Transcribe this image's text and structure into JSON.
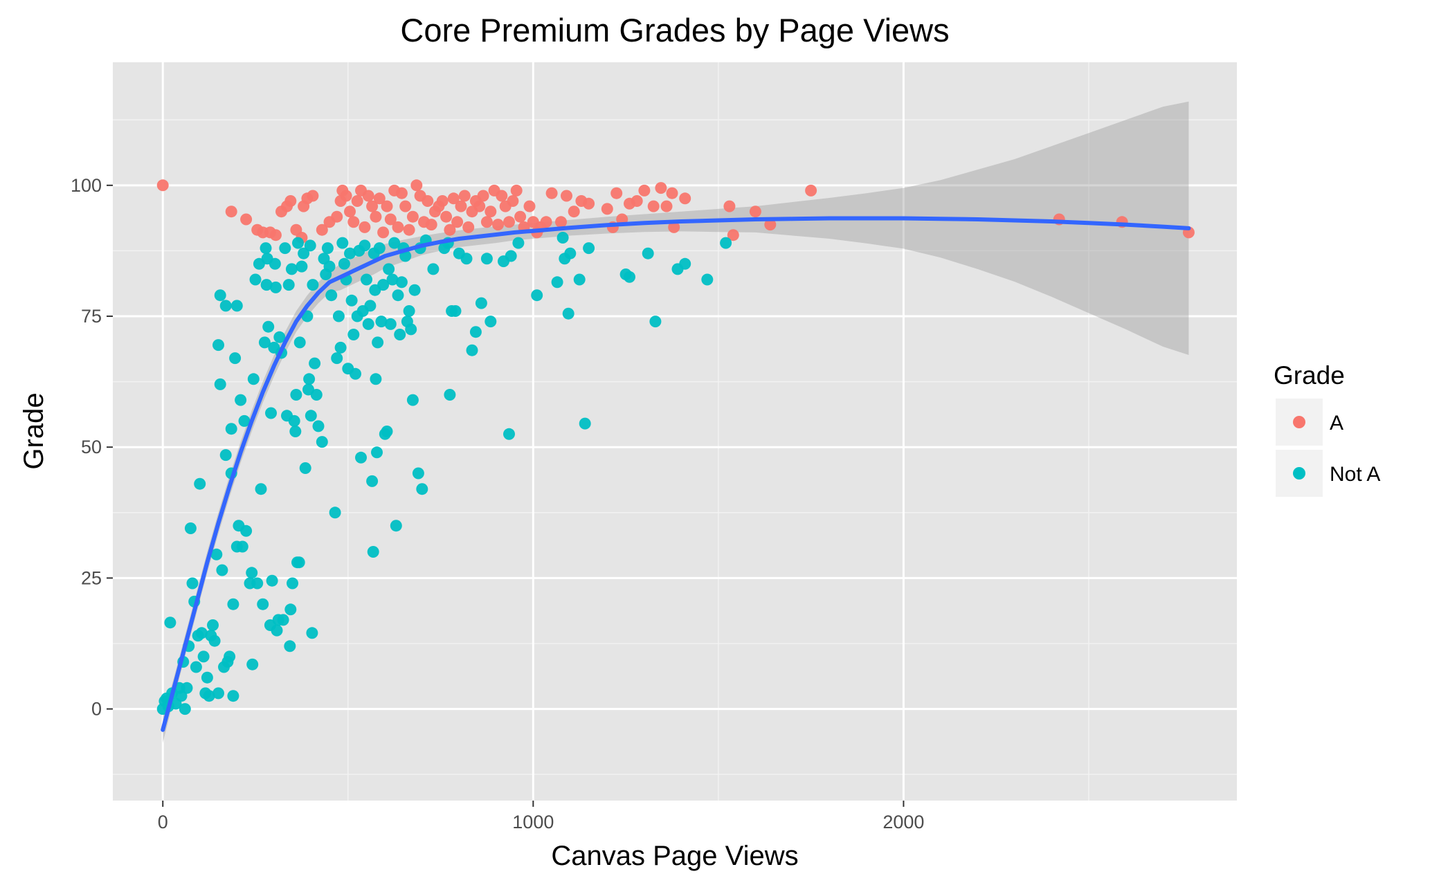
{
  "chart_data": {
    "type": "scatter",
    "title": "Core Premium Grades by Page Views",
    "xlabel": "Canvas Page Views",
    "ylabel": "Grade",
    "xlim": [
      -135,
      2900
    ],
    "ylim": [
      -17.5,
      123.5
    ],
    "x_ticks": [
      0,
      1000,
      2000
    ],
    "x_tick_labels": [
      "0",
      "1000",
      "2000"
    ],
    "x_minor_ticks": [
      500,
      1500,
      2500
    ],
    "y_ticks": [
      0,
      25,
      50,
      75,
      100
    ],
    "y_tick_labels": [
      "0",
      "25",
      "50",
      "75",
      "100"
    ],
    "y_minor_ticks": [
      -12.5,
      12.5,
      37.5,
      62.5,
      87.5,
      112.5
    ],
    "grid": true,
    "legend": {
      "title": "Grade",
      "position": "right"
    },
    "series": [
      {
        "name": "A",
        "color": "#F8766D",
        "points": [
          [
            0,
            100
          ],
          [
            185,
            95
          ],
          [
            225,
            93.5
          ],
          [
            255,
            91.5
          ],
          [
            270,
            91
          ],
          [
            290,
            91
          ],
          [
            305,
            90.5
          ],
          [
            320,
            95
          ],
          [
            335,
            96
          ],
          [
            345,
            97
          ],
          [
            360,
            91.5
          ],
          [
            375,
            90
          ],
          [
            380,
            96
          ],
          [
            390,
            97.5
          ],
          [
            405,
            98
          ],
          [
            430,
            91.5
          ],
          [
            450,
            93
          ],
          [
            470,
            94
          ],
          [
            480,
            97
          ],
          [
            485,
            99
          ],
          [
            495,
            98
          ],
          [
            505,
            95
          ],
          [
            515,
            93
          ],
          [
            525,
            97
          ],
          [
            535,
            99
          ],
          [
            545,
            92
          ],
          [
            555,
            98
          ],
          [
            565,
            96
          ],
          [
            575,
            94
          ],
          [
            585,
            97.5
          ],
          [
            595,
            91
          ],
          [
            605,
            96
          ],
          [
            615,
            93.5
          ],
          [
            625,
            99
          ],
          [
            635,
            92
          ],
          [
            645,
            98.5
          ],
          [
            655,
            96
          ],
          [
            665,
            91.5
          ],
          [
            675,
            94
          ],
          [
            685,
            100
          ],
          [
            695,
            98
          ],
          [
            705,
            93
          ],
          [
            715,
            97
          ],
          [
            725,
            92.5
          ],
          [
            735,
            95
          ],
          [
            745,
            96
          ],
          [
            755,
            97
          ],
          [
            765,
            94
          ],
          [
            775,
            91.5
          ],
          [
            785,
            97.5
          ],
          [
            795,
            93
          ],
          [
            805,
            96
          ],
          [
            815,
            98
          ],
          [
            825,
            92
          ],
          [
            835,
            95
          ],
          [
            845,
            97
          ],
          [
            855,
            96
          ],
          [
            865,
            98
          ],
          [
            875,
            93
          ],
          [
            885,
            95
          ],
          [
            895,
            99
          ],
          [
            905,
            92.5
          ],
          [
            915,
            98
          ],
          [
            925,
            96
          ],
          [
            935,
            93
          ],
          [
            945,
            97
          ],
          [
            955,
            99
          ],
          [
            965,
            94
          ],
          [
            975,
            92
          ],
          [
            990,
            96
          ],
          [
            1000,
            93
          ],
          [
            1010,
            91
          ],
          [
            1020,
            92
          ],
          [
            1035,
            93
          ],
          [
            1050,
            98.5
          ],
          [
            1075,
            93
          ],
          [
            1090,
            98
          ],
          [
            1110,
            95
          ],
          [
            1130,
            97
          ],
          [
            1150,
            96.5
          ],
          [
            1200,
            95.5
          ],
          [
            1215,
            92
          ],
          [
            1225,
            98.5
          ],
          [
            1240,
            93.5
          ],
          [
            1260,
            96.5
          ],
          [
            1280,
            97
          ],
          [
            1300,
            99
          ],
          [
            1325,
            96
          ],
          [
            1345,
            99.5
          ],
          [
            1360,
            96
          ],
          [
            1375,
            98.5
          ],
          [
            1380,
            92
          ],
          [
            1410,
            97.5
          ],
          [
            1530,
            96
          ],
          [
            1540,
            90.5
          ],
          [
            1600,
            95
          ],
          [
            1640,
            92.5
          ],
          [
            1750,
            99
          ],
          [
            2420,
            93.5
          ],
          [
            2590,
            93
          ],
          [
            2770,
            91
          ]
        ]
      },
      {
        "name": "Not A",
        "color": "#00BFC4",
        "points": [
          [
            0,
            0
          ],
          [
            5,
            1.5
          ],
          [
            10,
            2
          ],
          [
            15,
            0.5
          ],
          [
            20,
            16.5
          ],
          [
            25,
            3
          ],
          [
            35,
            1
          ],
          [
            45,
            4
          ],
          [
            50,
            2.5
          ],
          [
            55,
            9
          ],
          [
            60,
            0
          ],
          [
            65,
            4
          ],
          [
            70,
            12
          ],
          [
            75,
            34.5
          ],
          [
            80,
            24
          ],
          [
            85,
            20.5
          ],
          [
            90,
            8
          ],
          [
            95,
            14
          ],
          [
            100,
            43
          ],
          [
            105,
            14.5
          ],
          [
            110,
            10
          ],
          [
            115,
            3
          ],
          [
            120,
            6
          ],
          [
            125,
            2.5
          ],
          [
            130,
            14
          ],
          [
            135,
            16
          ],
          [
            140,
            13
          ],
          [
            145,
            29.5
          ],
          [
            150,
            3
          ],
          [
            150,
            69.5
          ],
          [
            155,
            62
          ],
          [
            155,
            79
          ],
          [
            160,
            26.5
          ],
          [
            165,
            8
          ],
          [
            170,
            48.5
          ],
          [
            170,
            77
          ],
          [
            175,
            9
          ],
          [
            180,
            10
          ],
          [
            185,
            53.5
          ],
          [
            185,
            45
          ],
          [
            190,
            20
          ],
          [
            190,
            2.5
          ],
          [
            195,
            67
          ],
          [
            200,
            77
          ],
          [
            200,
            31
          ],
          [
            205,
            35
          ],
          [
            210,
            59
          ],
          [
            215,
            31
          ],
          [
            220,
            55
          ],
          [
            225,
            34
          ],
          [
            235,
            24
          ],
          [
            240,
            26
          ],
          [
            242,
            8.5
          ],
          [
            245,
            63
          ],
          [
            250,
            82
          ],
          [
            255,
            24
          ],
          [
            260,
            85
          ],
          [
            265,
            42
          ],
          [
            270,
            20
          ],
          [
            275,
            70
          ],
          [
            278,
            88
          ],
          [
            280,
            81
          ],
          [
            282,
            86
          ],
          [
            285,
            73
          ],
          [
            290,
            16
          ],
          [
            292,
            56.5
          ],
          [
            295,
            24.5
          ],
          [
            300,
            69
          ],
          [
            303,
            85
          ],
          [
            305,
            80.5
          ],
          [
            308,
            15
          ],
          [
            312,
            17
          ],
          [
            315,
            71
          ],
          [
            320,
            68
          ],
          [
            325,
            17
          ],
          [
            330,
            88
          ],
          [
            335,
            56
          ],
          [
            340,
            81
          ],
          [
            343,
            12
          ],
          [
            345,
            19
          ],
          [
            348,
            84
          ],
          [
            350,
            24
          ],
          [
            355,
            55
          ],
          [
            358,
            53
          ],
          [
            360,
            60
          ],
          [
            363,
            28
          ],
          [
            365,
            89
          ],
          [
            368,
            28
          ],
          [
            370,
            70
          ],
          [
            375,
            84.5
          ],
          [
            380,
            87
          ],
          [
            385,
            46
          ],
          [
            390,
            75
          ],
          [
            393,
            61
          ],
          [
            395,
            63
          ],
          [
            398,
            88.5
          ],
          [
            400,
            56
          ],
          [
            403,
            14.5
          ],
          [
            405,
            81
          ],
          [
            410,
            66
          ],
          [
            415,
            60
          ],
          [
            420,
            54
          ],
          [
            430,
            51
          ],
          [
            435,
            86
          ],
          [
            440,
            83
          ],
          [
            445,
            88
          ],
          [
            450,
            84.5
          ],
          [
            455,
            79
          ],
          [
            465,
            37.5
          ],
          [
            470,
            67
          ],
          [
            475,
            75
          ],
          [
            480,
            69
          ],
          [
            485,
            89
          ],
          [
            490,
            85
          ],
          [
            495,
            82
          ],
          [
            500,
            65
          ],
          [
            505,
            87
          ],
          [
            510,
            78
          ],
          [
            515,
            71.5
          ],
          [
            520,
            64
          ],
          [
            525,
            75
          ],
          [
            530,
            87.5
          ],
          [
            535,
            48
          ],
          [
            540,
            76
          ],
          [
            545,
            88.5
          ],
          [
            550,
            82
          ],
          [
            555,
            73.5
          ],
          [
            560,
            77
          ],
          [
            565,
            43.5
          ],
          [
            568,
            30
          ],
          [
            570,
            87
          ],
          [
            573,
            80
          ],
          [
            575,
            63
          ],
          [
            578,
            49
          ],
          [
            580,
            70
          ],
          [
            585,
            88
          ],
          [
            590,
            74
          ],
          [
            595,
            81
          ],
          [
            600,
            52.5
          ],
          [
            605,
            53
          ],
          [
            610,
            84
          ],
          [
            615,
            73.5
          ],
          [
            620,
            82
          ],
          [
            625,
            89
          ],
          [
            630,
            35
          ],
          [
            635,
            79
          ],
          [
            640,
            71.5
          ],
          [
            645,
            81.5
          ],
          [
            650,
            88
          ],
          [
            655,
            86.5
          ],
          [
            660,
            74
          ],
          [
            665,
            76
          ],
          [
            670,
            72.5
          ],
          [
            675,
            59
          ],
          [
            680,
            80
          ],
          [
            690,
            45
          ],
          [
            695,
            88
          ],
          [
            700,
            42
          ],
          [
            710,
            89.5
          ],
          [
            730,
            84
          ],
          [
            760,
            88
          ],
          [
            770,
            89
          ],
          [
            775,
            60
          ],
          [
            780,
            76
          ],
          [
            790,
            76
          ],
          [
            800,
            87
          ],
          [
            820,
            86
          ],
          [
            835,
            68.5
          ],
          [
            845,
            72
          ],
          [
            860,
            77.5
          ],
          [
            875,
            86
          ],
          [
            885,
            74
          ],
          [
            920,
            85.5
          ],
          [
            935,
            52.5
          ],
          [
            940,
            86.5
          ],
          [
            960,
            89
          ],
          [
            1010,
            79
          ],
          [
            1065,
            81.5
          ],
          [
            1080,
            90
          ],
          [
            1085,
            86
          ],
          [
            1095,
            75.5
          ],
          [
            1100,
            87
          ],
          [
            1125,
            82
          ],
          [
            1140,
            54.5
          ],
          [
            1150,
            88
          ],
          [
            1250,
            83
          ],
          [
            1260,
            82.5
          ],
          [
            1310,
            87
          ],
          [
            1330,
            74
          ],
          [
            1390,
            84
          ],
          [
            1410,
            85
          ],
          [
            1470,
            82
          ],
          [
            1520,
            89
          ]
        ]
      }
    ],
    "smooth": {
      "method": "loess",
      "color": "#3366FF",
      "x": [
        0,
        30,
        60,
        90,
        120,
        150,
        180,
        210,
        240,
        270,
        300,
        330,
        360,
        390,
        420,
        450,
        480,
        510,
        540,
        570,
        600,
        650,
        700,
        750,
        800,
        850,
        900,
        950,
        1000,
        1100,
        1200,
        1300,
        1400,
        1500,
        1600,
        1700,
        1800,
        1900,
        2000,
        2100,
        2200,
        2300,
        2400,
        2500,
        2600,
        2700,
        2770
      ],
      "y": [
        -4,
        4,
        12,
        20,
        28,
        35.5,
        42.5,
        49,
        55,
        60.5,
        65.5,
        70,
        74,
        77,
        79.5,
        81.5,
        82.5,
        83.5,
        84.5,
        85.5,
        86.5,
        87.5,
        88.5,
        89.2,
        89.8,
        90.2,
        90.6,
        91,
        91.3,
        91.9,
        92.4,
        92.8,
        93.1,
        93.3,
        93.5,
        93.6,
        93.7,
        93.7,
        93.7,
        93.6,
        93.5,
        93.3,
        93.1,
        92.8,
        92.5,
        92.1,
        91.8
      ],
      "ci_upper": [
        -1.5,
        6,
        14,
        22,
        30,
        37.5,
        44.5,
        51,
        57,
        62.5,
        67.5,
        72,
        76,
        79,
        81.5,
        83.5,
        85,
        86,
        87,
        88,
        88.8,
        89.6,
        90.3,
        90.9,
        91.4,
        91.8,
        92.2,
        92.5,
        92.8,
        93.4,
        94,
        94.5,
        95,
        95.5,
        96,
        96.8,
        97.6,
        98.5,
        99.5,
        101,
        103,
        105,
        107.5,
        110,
        112.5,
        115,
        116
      ]
    }
  }
}
